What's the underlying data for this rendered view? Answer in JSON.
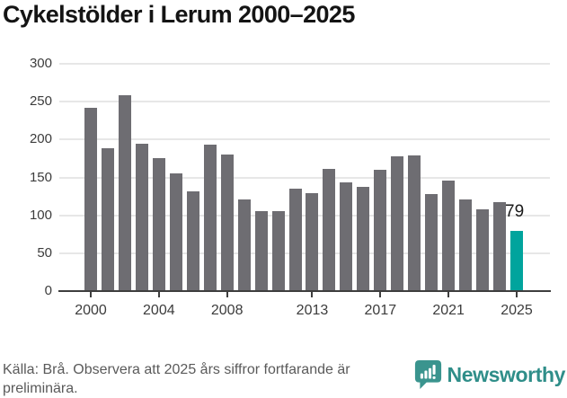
{
  "title": "Cykelstölder i Lerum 2000–2025",
  "chart_data": {
    "type": "bar",
    "title": "Cykelstölder i Lerum 2000–2025",
    "categories": [
      2000,
      2001,
      2002,
      2003,
      2004,
      2005,
      2006,
      2007,
      2008,
      2009,
      2010,
      2011,
      2012,
      2013,
      2014,
      2015,
      2016,
      2017,
      2018,
      2019,
      2020,
      2021,
      2022,
      2023,
      2024,
      2025
    ],
    "values": [
      242,
      188,
      258,
      195,
      176,
      155,
      132,
      193,
      180,
      121,
      105,
      105,
      135,
      129,
      161,
      143,
      137,
      160,
      178,
      179,
      128,
      146,
      121,
      108,
      117,
      79
    ],
    "xlabel": "",
    "ylabel": "",
    "ylim": [
      0,
      300
    ],
    "yticks": [
      0,
      50,
      100,
      150,
      200,
      250,
      300
    ],
    "xticks": [
      2000,
      2004,
      2008,
      2013,
      2017,
      2021,
      2025
    ],
    "grid": "horizontal",
    "legend_position": "none",
    "bar_color": "#6e6d72",
    "highlight_index": 25,
    "highlight_color": "#00a49d",
    "highlight_label": "79"
  },
  "footer": {
    "source": "Källa: Brå. Observera att 2025 års siffror fortfarande är preliminära."
  },
  "branding": {
    "name": "Newsworthy",
    "icon": "newsworthy-speech-bubble-chart-icon",
    "icon_color": "#3a948e",
    "text_color": "#2f8e89"
  }
}
